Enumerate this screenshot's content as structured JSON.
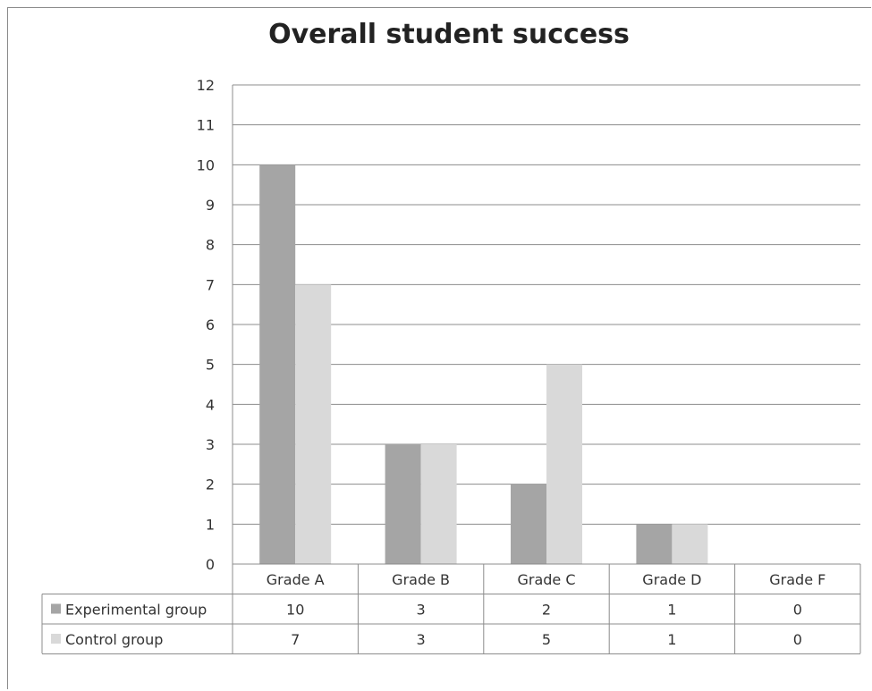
{
  "chart_data": {
    "type": "bar",
    "title": "Overall student success",
    "categories": [
      "Grade A",
      "Grade B",
      "Grade C",
      "Grade D",
      "Grade F"
    ],
    "series": [
      {
        "name": "Experimental group",
        "values": [
          10,
          3,
          2,
          1,
          0
        ],
        "color": "#a5a5a5"
      },
      {
        "name": "Control group",
        "values": [
          7,
          3,
          5,
          1,
          0
        ],
        "color": "#d9d9d9"
      }
    ],
    "ylim": [
      0,
      12
    ],
    "yticks": [
      "0",
      "1",
      "2",
      "3",
      "4",
      "5",
      "6",
      "7",
      "8",
      "9",
      "10",
      "11",
      "12"
    ],
    "grid": true,
    "legend": "data-table-below",
    "data_table": true
  }
}
